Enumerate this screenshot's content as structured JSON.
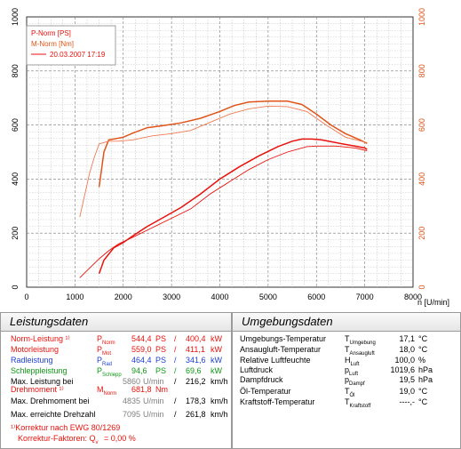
{
  "chart_data": {
    "type": "line",
    "xlabel": "n [U/min]",
    "xlim": [
      0,
      8000
    ],
    "ylim": [
      0,
      1000
    ],
    "x_ticks": [
      "0",
      "1000",
      "2000",
      "3000",
      "4000",
      "5000",
      "6000",
      "7000",
      "8000"
    ],
    "y_ticks": [
      "0",
      "200",
      "400",
      "600",
      "800",
      "1000"
    ],
    "legend": {
      "line1": "P-Norm [PS]",
      "line2": "M-Norm [Nm]",
      "line3": "20.03.2007 17:19"
    },
    "series": [
      {
        "name": "P-Norm [PS]",
        "color": "#e8120c",
        "x": [
          1500,
          1600,
          1800,
          2000,
          2200,
          2500,
          2800,
          3200,
          3600,
          4000,
          4400,
          4800,
          5200,
          5500,
          5700,
          5900,
          6100,
          6400,
          6700,
          7000,
          7050
        ],
        "y": [
          50,
          100,
          145,
          165,
          190,
          225,
          255,
          295,
          345,
          400,
          445,
          485,
          520,
          540,
          548,
          548,
          545,
          535,
          525,
          515,
          510
        ]
      },
      {
        "name": "M-Norm [Nm]",
        "color": "#e05418",
        "x": [
          1500,
          1600,
          1700,
          1800,
          2000,
          2200,
          2500,
          2800,
          3200,
          3600,
          4000,
          4300,
          4600,
          5000,
          5400,
          5700,
          6000,
          6300,
          6600,
          6900,
          7050
        ],
        "y": [
          370,
          500,
          545,
          548,
          555,
          570,
          590,
          597,
          608,
          625,
          650,
          672,
          685,
          688,
          688,
          676,
          640,
          600,
          568,
          545,
          532
        ]
      },
      {
        "name": "20.03.2007 17:19",
        "color": "#e8120c",
        "x": [
          1100,
          1300,
          1500,
          1700,
          1900,
          2200,
          2600,
          3000,
          3400,
          3800,
          4200,
          4600,
          5000,
          5400,
          5800,
          6000,
          6400,
          6800,
          7050
        ],
        "y": [
          35,
          70,
          105,
          135,
          160,
          185,
          220,
          255,
          290,
          345,
          390,
          435,
          472,
          500,
          520,
          522,
          522,
          515,
          505
        ]
      },
      {
        "name": "20.03.2007 17:19 M",
        "color": "#f07a52",
        "x": [
          1100,
          1200,
          1300,
          1400,
          1500,
          1700,
          1900,
          2200,
          2600,
          3000,
          3400,
          3800,
          4200,
          4600,
          5000,
          5400,
          5800,
          6200,
          6600,
          7050
        ],
        "y": [
          260,
          340,
          420,
          480,
          530,
          540,
          540,
          545,
          560,
          568,
          580,
          610,
          640,
          660,
          670,
          668,
          650,
          600,
          555,
          535
        ]
      }
    ]
  },
  "leistung": {
    "title": "Leistungsdaten",
    "rows": [
      {
        "label": "Norm-Leistung ¹⁾",
        "sym": "P",
        "sub": "Norm",
        "v1": "544,4",
        "u1": "PS",
        "v2": "400,4",
        "u2": "kW",
        "color": "#e8120c"
      },
      {
        "label": "Motorleistung",
        "sym": "P",
        "sub": "Mot",
        "v1": "559,0",
        "u1": "PS",
        "v2": "411,1",
        "u2": "kW",
        "color": "#e8120c"
      },
      {
        "label": "Radleistung",
        "sym": "P",
        "sub": "Rad",
        "v1": "464,4",
        "u1": "PS",
        "v2": "341,6",
        "u2": "kW",
        "color": "#1c3fd0"
      },
      {
        "label": "Schleppleistung",
        "sym": "P",
        "sub": "Schlepp",
        "v1": "94,6",
        "u1": "PS",
        "v2": "69,6",
        "u2": "kW",
        "color": "#0f9a14"
      }
    ],
    "max_leistung": {
      "label": "Max. Leistung bei",
      "v1": "5860",
      "u1": "U/min",
      "v2": "216,2",
      "u2": "km/h"
    },
    "drehmoment": {
      "label": "Drehmoment ¹⁾",
      "sym": "M",
      "sub": "Norm",
      "v1": "681,8",
      "u1": "Nm",
      "color": "#e8120c"
    },
    "max_drehmoment": {
      "label": "Max. Drehmoment bei",
      "v1": "4835",
      "u1": "U/min",
      "v2": "178,3",
      "u2": "km/h"
    },
    "max_drehzahl": {
      "label": "Max. erreichte Drehzahl",
      "v1": "7095",
      "u1": "U/min",
      "v2": "261,8",
      "u2": "km/h"
    },
    "korrektur": "¹⁾Korrektur nach EWG 80/1269",
    "faktoren": "Korrektur-Faktoren: Q",
    "faktoren_sub": "v",
    "faktoren_val": "=   0,00 %",
    "sep": "/"
  },
  "umgebung": {
    "title": "Umgebungsdaten",
    "rows": [
      {
        "label": "Umgebungs-Temperatur",
        "sym": "T",
        "sub": "Umgebung",
        "val": "17,1",
        "unit": "°C"
      },
      {
        "label": "Ansaugluft-Temperatur",
        "sym": "T",
        "sub": "Ansaugluft",
        "val": "18,0",
        "unit": "°C"
      },
      {
        "label": "Relative Luftfeuchte",
        "sym": "H",
        "sub": "Luft",
        "val": "100,0",
        "unit": "%"
      },
      {
        "label": "Luftdruck",
        "sym": "p",
        "sub": "Luft",
        "val": "1019,6",
        "unit": "hPa"
      },
      {
        "label": "Dampfdruck",
        "sym": "p",
        "sub": "Dampf",
        "val": "19,5",
        "unit": "hPa"
      },
      {
        "label": "Öl-Temperatur",
        "sym": "T",
        "sub": "Öl",
        "val": "19,0",
        "unit": "°C"
      },
      {
        "label": "Kraftstoff-Temperatur",
        "sym": "T",
        "sub": "Kraftstoff",
        "val": "----,-",
        "unit": "°C"
      }
    ]
  }
}
